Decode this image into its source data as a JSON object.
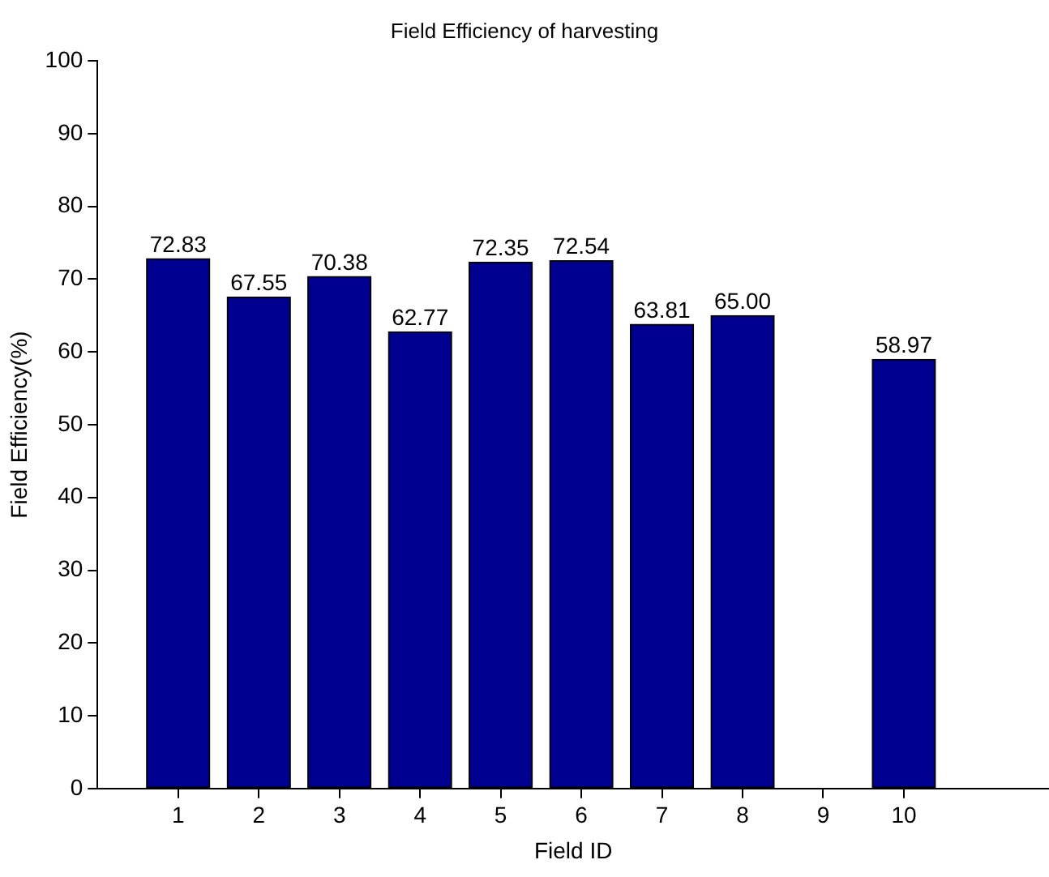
{
  "chart_data": {
    "type": "bar",
    "title": "Field Efficiency of harvesting",
    "xlabel": "Field ID",
    "ylabel": "Field Efficiency(%)",
    "x": [
      1,
      2,
      3,
      4,
      5,
      6,
      7,
      8,
      9,
      10
    ],
    "values": [
      72.83,
      67.55,
      70.38,
      62.77,
      72.35,
      72.54,
      63.81,
      65.0,
      0,
      58.97
    ],
    "value_labels": [
      "72.83",
      "67.55",
      "70.38",
      "62.77",
      "72.35",
      "72.54",
      "63.81",
      "65.00",
      null,
      "58.97"
    ],
    "color": "#000090",
    "xlim": [
      0,
      11.8
    ],
    "xticks": [
      1,
      2,
      3,
      4,
      5,
      6,
      7,
      8,
      9,
      10
    ],
    "ylim": [
      0,
      100
    ],
    "yticks": [
      0,
      10,
      20,
      30,
      40,
      50,
      60,
      70,
      80,
      90,
      100
    ],
    "grid": false,
    "legend": false
  }
}
